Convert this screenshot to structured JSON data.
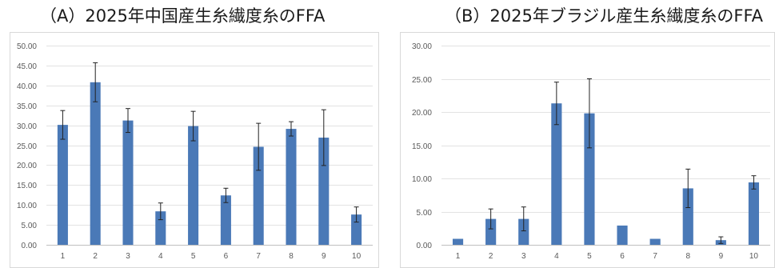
{
  "chart_data": [
    {
      "type": "bar",
      "title": "（A）2025年中国産生糸繊度糸のFFA",
      "categories": [
        "1",
        "2",
        "3",
        "4",
        "5",
        "6",
        "7",
        "8",
        "9",
        "10"
      ],
      "values": [
        30.1,
        40.8,
        31.2,
        8.4,
        29.8,
        12.4,
        24.6,
        29.1,
        26.9,
        7.6
      ],
      "errors": [
        3.6,
        4.9,
        3.0,
        2.1,
        3.7,
        1.8,
        5.9,
        1.8,
        7.0,
        1.9
      ],
      "ylim": [
        0,
        50
      ],
      "yticks": [
        "0.00",
        "5.00",
        "10.00",
        "15.00",
        "20.00",
        "25.00",
        "30.00",
        "35.00",
        "40.00",
        "45.00",
        "50.00"
      ],
      "grid": true,
      "bar_color": "#4a79b7"
    },
    {
      "type": "bar",
      "title": "（B）2025年ブラジル産生糸繊度糸のFFA",
      "categories": [
        "1",
        "2",
        "3",
        "4",
        "5",
        "6",
        "7",
        "8",
        "9",
        "10"
      ],
      "values": [
        0.9,
        3.9,
        3.9,
        21.3,
        19.8,
        2.9,
        0.9,
        8.5,
        0.7,
        9.4
      ],
      "errors": [
        0.0,
        1.5,
        1.8,
        3.2,
        5.2,
        0.0,
        0.0,
        2.9,
        0.5,
        1.0
      ],
      "ylim": [
        0,
        30
      ],
      "yticks": [
        "0.00",
        "5.00",
        "10.00",
        "15.00",
        "20.00",
        "25.00",
        "30.00"
      ],
      "grid": true,
      "bar_color": "#4a79b7"
    }
  ]
}
